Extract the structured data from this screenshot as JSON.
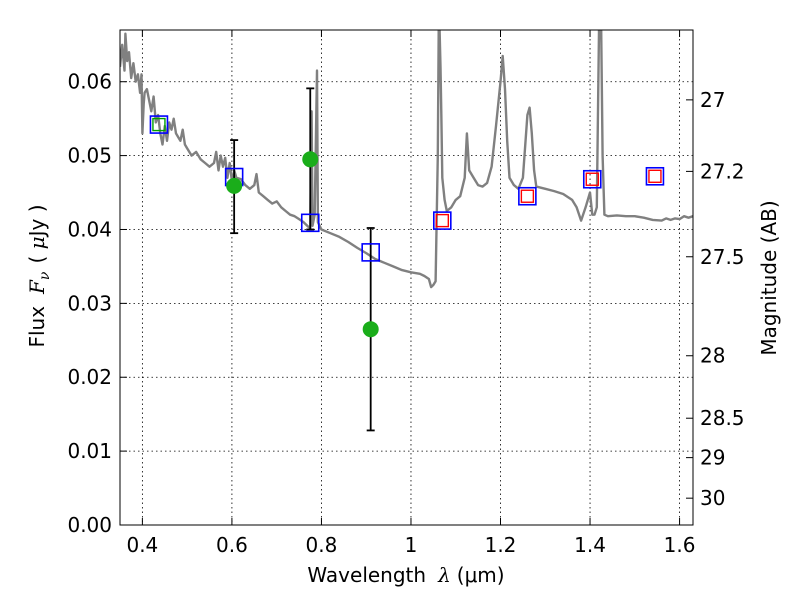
{
  "chart_data": {
    "type": "line",
    "xlabel": "Wavelength  λ (μm)",
    "xlabel_parts": {
      "text": "Wavelength",
      "symbol": "λ",
      "unit": "(μm)"
    },
    "ylabel": "Flux  F_ν  ( μJy )",
    "ylabel_parts": {
      "text": "Flux",
      "symbol": "F",
      "subscript": "ν",
      "unit_open": "( ",
      "unit_mu": "μ",
      "unit_rest": "Jy )"
    },
    "y2label": "Magnitude (AB)",
    "xlim": [
      0.35,
      1.63
    ],
    "ylim": [
      0.0,
      0.067
    ],
    "x_ticks": [
      0.4,
      0.6,
      0.8,
      1.0,
      1.2,
      1.4,
      1.6
    ],
    "x_tick_labels": [
      "0.4",
      "0.6",
      "0.8",
      "1",
      "1.2",
      "1.4",
      "1.6"
    ],
    "y_ticks": [
      0.0,
      0.01,
      0.02,
      0.03,
      0.04,
      0.05,
      0.06
    ],
    "y_tick_labels": [
      "0.00",
      "0.01",
      "0.02",
      "0.03",
      "0.04",
      "0.05",
      "0.06"
    ],
    "mag_ticks": [
      {
        "label": "27",
        "mag": 27.0
      },
      {
        "label": "27.2",
        "mag": 27.2
      },
      {
        "label": "27.5",
        "mag": 27.5
      },
      {
        "label": "28",
        "mag": 28.0
      },
      {
        "label": "28.5",
        "mag": 28.5
      },
      {
        "label": "29",
        "mag": 29.0
      },
      {
        "label": "30",
        "mag": 30.0
      }
    ],
    "grid": true,
    "colors": {
      "spectrum": "#808080",
      "observed": "#1aad1a",
      "errorbar": "#000000",
      "model_blue": "#0000ff",
      "model_red": "#ff0000",
      "model_green": "#00a000"
    },
    "series": [
      {
        "type": "line",
        "points": [
          [
            0.35,
            0.062
          ],
          [
            0.355,
            0.065
          ],
          [
            0.36,
            0.0615
          ],
          [
            0.362,
            0.0665
          ],
          [
            0.366,
            0.0628
          ],
          [
            0.37,
            0.064
          ],
          [
            0.375,
            0.0605
          ],
          [
            0.38,
            0.0625
          ],
          [
            0.385,
            0.06
          ],
          [
            0.39,
            0.061
          ],
          [
            0.395,
            0.0585
          ],
          [
            0.398,
            0.061
          ],
          [
            0.4,
            0.053
          ],
          [
            0.403,
            0.057
          ],
          [
            0.405,
            0.0585
          ],
          [
            0.41,
            0.059
          ],
          [
            0.415,
            0.0575
          ],
          [
            0.42,
            0.056
          ],
          [
            0.425,
            0.058
          ],
          [
            0.43,
            0.0545
          ],
          [
            0.435,
            0.0555
          ],
          [
            0.44,
            0.053
          ],
          [
            0.445,
            0.0515
          ],
          [
            0.45,
            0.054
          ],
          [
            0.455,
            0.052
          ],
          [
            0.46,
            0.0545
          ],
          [
            0.465,
            0.0535
          ],
          [
            0.47,
            0.055
          ],
          [
            0.475,
            0.053
          ],
          [
            0.48,
            0.0525
          ],
          [
            0.485,
            0.052
          ],
          [
            0.49,
            0.0535
          ],
          [
            0.495,
            0.0515
          ],
          [
            0.5,
            0.051
          ],
          [
            0.51,
            0.05
          ],
          [
            0.52,
            0.0505
          ],
          [
            0.53,
            0.0495
          ],
          [
            0.54,
            0.049
          ],
          [
            0.55,
            0.0485
          ],
          [
            0.56,
            0.049
          ],
          [
            0.565,
            0.0505
          ],
          [
            0.57,
            0.048
          ],
          [
            0.575,
            0.05
          ],
          [
            0.58,
            0.0485
          ],
          [
            0.585,
            0.0497
          ],
          [
            0.59,
            0.047
          ],
          [
            0.595,
            0.049
          ],
          [
            0.6,
            0.0465
          ],
          [
            0.605,
            0.048
          ],
          [
            0.61,
            0.047
          ],
          [
            0.62,
            0.0468
          ],
          [
            0.63,
            0.046
          ],
          [
            0.64,
            0.0455
          ],
          [
            0.65,
            0.046
          ],
          [
            0.655,
            0.0475
          ],
          [
            0.66,
            0.045
          ],
          [
            0.67,
            0.0445
          ],
          [
            0.68,
            0.044
          ],
          [
            0.69,
            0.0435
          ],
          [
            0.7,
            0.0438
          ],
          [
            0.71,
            0.043
          ],
          [
            0.72,
            0.0425
          ],
          [
            0.73,
            0.042
          ],
          [
            0.74,
            0.0418
          ],
          [
            0.75,
            0.0414
          ],
          [
            0.76,
            0.041
          ],
          [
            0.77,
            0.0404
          ],
          [
            0.775,
            0.0402
          ],
          [
            0.778,
            0.056
          ],
          [
            0.78,
            0.0405
          ],
          [
            0.785,
            0.042
          ],
          [
            0.79,
            0.0615
          ],
          [
            0.792,
            0.041
          ],
          [
            0.8,
            0.04
          ],
          [
            0.82,
            0.0395
          ],
          [
            0.84,
            0.039
          ],
          [
            0.86,
            0.0383
          ],
          [
            0.88,
            0.0375
          ],
          [
            0.9,
            0.0368
          ],
          [
            0.92,
            0.036
          ],
          [
            0.94,
            0.0355
          ],
          [
            0.96,
            0.035
          ],
          [
            0.98,
            0.0345
          ],
          [
            1.0,
            0.0342
          ],
          [
            1.02,
            0.034
          ],
          [
            1.03,
            0.0337
          ],
          [
            1.04,
            0.0333
          ],
          [
            1.045,
            0.0322
          ],
          [
            1.05,
            0.0325
          ],
          [
            1.055,
            0.033
          ],
          [
            1.06,
            0.05
          ],
          [
            1.062,
            0.067
          ],
          [
            1.064,
            0.067
          ],
          [
            1.066,
            0.062
          ],
          [
            1.068,
            0.055
          ],
          [
            1.07,
            0.047
          ],
          [
            1.075,
            0.044
          ],
          [
            1.08,
            0.0425
          ],
          [
            1.09,
            0.043
          ],
          [
            1.1,
            0.044
          ],
          [
            1.11,
            0.0445
          ],
          [
            1.12,
            0.047
          ],
          [
            1.125,
            0.053
          ],
          [
            1.13,
            0.048
          ],
          [
            1.14,
            0.047
          ],
          [
            1.15,
            0.046
          ],
          [
            1.16,
            0.0458
          ],
          [
            1.17,
            0.0463
          ],
          [
            1.18,
            0.0485
          ],
          [
            1.19,
            0.054
          ],
          [
            1.2,
            0.06
          ],
          [
            1.205,
            0.0635
          ],
          [
            1.21,
            0.059
          ],
          [
            1.215,
            0.052
          ],
          [
            1.22,
            0.047
          ],
          [
            1.23,
            0.046
          ],
          [
            1.24,
            0.0455
          ],
          [
            1.25,
            0.047
          ],
          [
            1.26,
            0.0555
          ],
          [
            1.265,
            0.0565
          ],
          [
            1.27,
            0.053
          ],
          [
            1.275,
            0.048
          ],
          [
            1.28,
            0.0458
          ],
          [
            1.3,
            0.0455
          ],
          [
            1.32,
            0.0452
          ],
          [
            1.34,
            0.0448
          ],
          [
            1.36,
            0.044
          ],
          [
            1.37,
            0.043
          ],
          [
            1.38,
            0.0412
          ],
          [
            1.39,
            0.043
          ],
          [
            1.4,
            0.045
          ],
          [
            1.405,
            0.042
          ],
          [
            1.41,
            0.042
          ],
          [
            1.415,
            0.043
          ],
          [
            1.42,
            0.067
          ],
          [
            1.425,
            0.067
          ],
          [
            1.428,
            0.05
          ],
          [
            1.432,
            0.042
          ],
          [
            1.44,
            0.0418
          ],
          [
            1.46,
            0.0419
          ],
          [
            1.48,
            0.0418
          ],
          [
            1.5,
            0.0418
          ],
          [
            1.52,
            0.0416
          ],
          [
            1.54,
            0.0413
          ],
          [
            1.56,
            0.0412
          ],
          [
            1.57,
            0.0415
          ],
          [
            1.58,
            0.0413
          ],
          [
            1.59,
            0.0415
          ],
          [
            1.6,
            0.0414
          ],
          [
            1.61,
            0.0418
          ],
          [
            1.62,
            0.0416
          ],
          [
            1.63,
            0.0418
          ]
        ]
      },
      {
        "type": "scatter-errorbar",
        "points": [
          {
            "x": 0.605,
            "y": 0.0459,
            "yerr_low": 0.0395,
            "yerr_high": 0.0521
          },
          {
            "x": 0.775,
            "y": 0.0495,
            "yerr_low": 0.04,
            "yerr_high": 0.0591
          },
          {
            "x": 0.91,
            "y": 0.0265,
            "yerr_low": 0.0128,
            "yerr_high": 0.0402
          }
        ]
      },
      {
        "type": "scatter",
        "marker": "square",
        "points": [
          {
            "x": 0.437,
            "y": 0.0542,
            "outer": "#0000ff",
            "inner": "#00a000"
          },
          {
            "x": 0.605,
            "y": 0.0471,
            "outer": "#0000ff",
            "inner": null
          },
          {
            "x": 0.775,
            "y": 0.0409,
            "outer": "#0000ff",
            "inner": null
          },
          {
            "x": 0.91,
            "y": 0.0369,
            "outer": "#0000ff",
            "inner": null
          },
          {
            "x": 1.07,
            "y": 0.0412,
            "outer": "#0000ff",
            "inner": "#ff0000"
          },
          {
            "x": 1.26,
            "y": 0.0445,
            "outer": "#0000ff",
            "inner": "#ff0000"
          },
          {
            "x": 1.405,
            "y": 0.0468,
            "outer": "#0000ff",
            "inner": "#ff0000"
          },
          {
            "x": 1.545,
            "y": 0.0472,
            "outer": "#0000ff",
            "inner": "#ff0000"
          }
        ]
      }
    ]
  }
}
